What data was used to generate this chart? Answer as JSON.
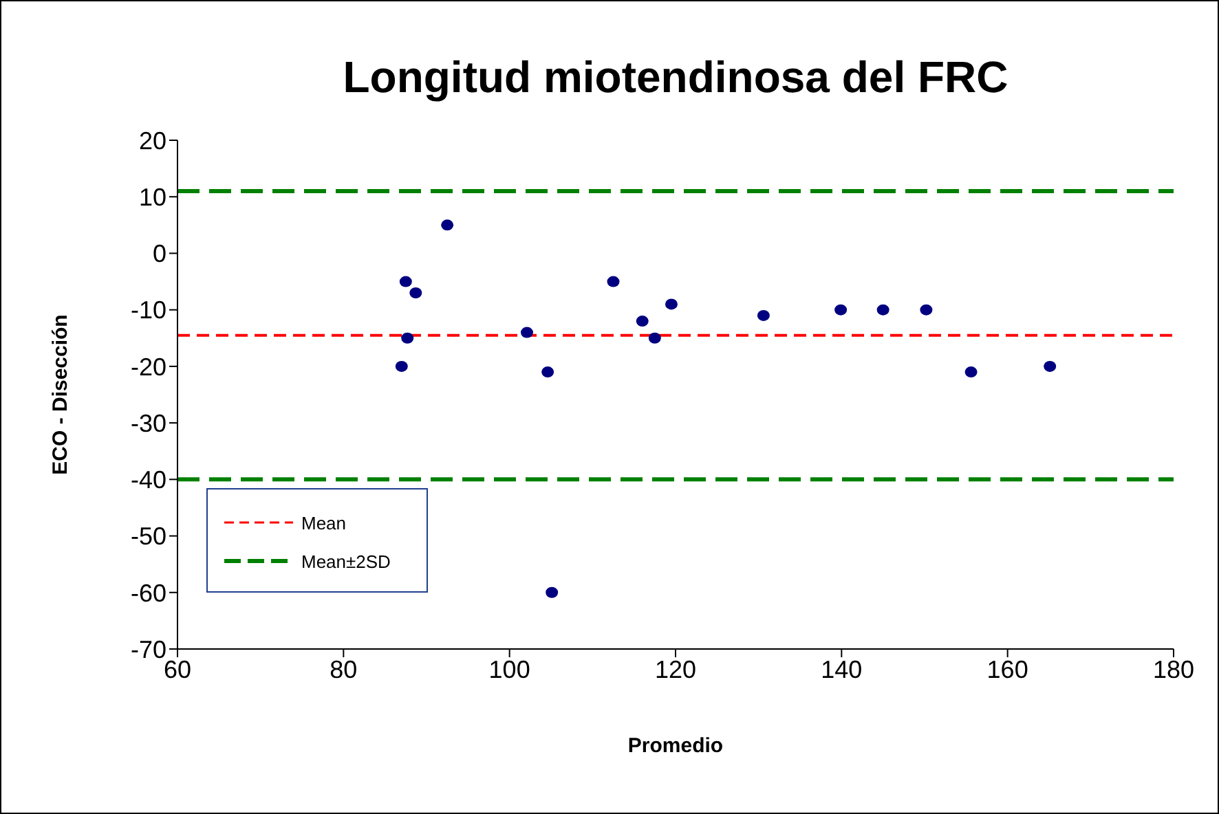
{
  "chart_data": {
    "type": "scatter",
    "title": "Longitud miotendinosa del FRC",
    "xlabel": "Promedio",
    "ylabel": "ECO - Disección",
    "x": [
      87,
      87.5,
      87.7,
      88.7,
      92.5,
      102.1,
      104.6,
      105.1,
      112.5,
      116,
      117.5,
      119.5,
      130.6,
      139.9,
      145,
      150.2,
      155.6,
      165.1
    ],
    "series": [
      {
        "color": "#000080",
        "values": [
          -20,
          -5,
          -15,
          -7,
          5,
          -14,
          -21,
          -60,
          -5,
          -12,
          -15,
          -9,
          -11,
          -10,
          -10,
          -10,
          -21,
          -20
        ]
      }
    ],
    "xlim": [
      60,
      180
    ],
    "xticks": [
      60,
      80,
      100,
      120,
      140,
      160,
      180
    ],
    "ylim": [
      -70,
      20
    ],
    "yticks": [
      -70,
      -60,
      -50,
      -40,
      -30,
      -20,
      -10,
      0,
      10,
      20
    ],
    "ref_lines": [
      {
        "axis": "y",
        "value": -14.5,
        "label": "Mean",
        "color": "#ff0000",
        "line_style": "dashed"
      },
      {
        "axis": "y",
        "value": 11,
        "label": "Mean±2SD",
        "color": "#008000",
        "line_style": "dashed"
      },
      {
        "axis": "y",
        "value": -40,
        "color": "#008000",
        "line_style": "dashed"
      }
    ],
    "legend": "bottom left",
    "grid": false,
    "marker": "circle"
  }
}
